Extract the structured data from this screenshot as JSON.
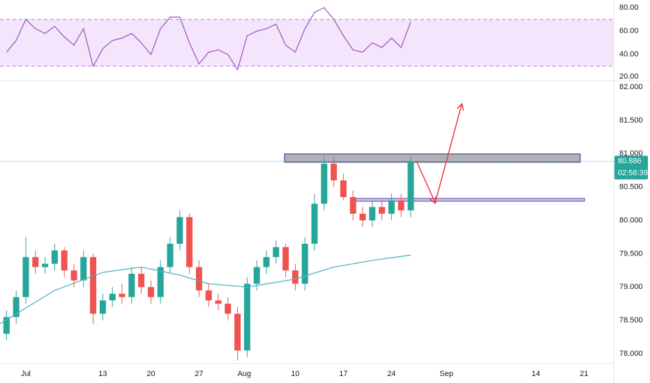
{
  "chart_data": [
    {
      "type": "line",
      "color": "#9c4fbd",
      "band": [
        30,
        70
      ],
      "band_color": "#f3e5fb",
      "x": [
        -2,
        -1,
        0,
        1,
        2,
        3,
        4,
        5,
        6,
        7,
        8,
        9,
        10,
        11,
        12,
        13,
        14,
        15,
        16,
        17,
        18,
        19,
        20,
        21,
        22,
        23,
        24,
        25,
        26,
        27,
        28,
        29,
        30,
        31,
        32,
        33,
        34,
        35,
        36,
        37,
        38,
        39,
        40
      ],
      "values": [
        42,
        52,
        70,
        62,
        58,
        64,
        55,
        48,
        62,
        30,
        45,
        52,
        54,
        58,
        50,
        40,
        62,
        72,
        72,
        50,
        32,
        42,
        44,
        40,
        27,
        56,
        60,
        62,
        66,
        48,
        42,
        62,
        76,
        80,
        70,
        56,
        44,
        42,
        50,
        46,
        54,
        46,
        68
      ],
      "xlim": [
        -2.68,
        61.09
      ],
      "ylim": [
        18.8,
        86.54
      ],
      "yticks": [
        {
          "value": 80,
          "label": "80.00"
        },
        {
          "value": 60,
          "label": "60.00"
        },
        {
          "value": 40,
          "label": "40.00"
        },
        {
          "value": 20,
          "label": "20.00"
        }
      ]
    },
    {
      "type": "candlestick",
      "up_color": "#26a69a",
      "down_color": "#ef5350",
      "x": [
        -2,
        -1,
        0,
        1,
        2,
        3,
        4,
        5,
        6,
        7,
        8,
        9,
        10,
        11,
        12,
        13,
        14,
        15,
        16,
        17,
        18,
        19,
        20,
        21,
        22,
        23,
        24,
        25,
        26,
        27,
        28,
        29,
        30,
        31,
        32,
        33,
        34,
        35,
        36,
        37,
        38,
        39,
        40
      ],
      "open": [
        78.3,
        78.55,
        78.85,
        79.45,
        79.3,
        79.35,
        79.55,
        79.25,
        79.1,
        79.45,
        78.6,
        78.8,
        78.9,
        78.85,
        79.2,
        79.0,
        78.85,
        79.3,
        79.65,
        80.05,
        79.3,
        78.95,
        78.8,
        78.75,
        78.6,
        78.05,
        79.05,
        79.3,
        79.45,
        79.6,
        79.25,
        79.05,
        79.65,
        80.25,
        80.85,
        80.6,
        80.35,
        80.1,
        80.0,
        80.2,
        80.1,
        80.3,
        80.15
      ],
      "high": [
        78.65,
        78.95,
        79.75,
        79.55,
        79.45,
        79.65,
        79.6,
        79.35,
        79.55,
        79.5,
        78.9,
        79.0,
        79.05,
        79.3,
        79.3,
        79.1,
        79.4,
        79.75,
        80.15,
        80.1,
        79.4,
        79.05,
        78.9,
        78.85,
        78.7,
        79.15,
        79.4,
        79.55,
        79.7,
        79.65,
        79.35,
        79.75,
        80.4,
        80.98,
        80.95,
        80.7,
        80.45,
        80.2,
        80.3,
        80.3,
        80.4,
        80.4,
        80.95
      ],
      "low": [
        78.2,
        78.45,
        78.75,
        79.2,
        79.2,
        79.25,
        79.15,
        79.0,
        79.0,
        78.45,
        78.5,
        78.7,
        78.75,
        78.75,
        78.9,
        78.75,
        78.75,
        79.2,
        79.55,
        79.2,
        78.85,
        78.7,
        78.65,
        78.5,
        77.9,
        77.95,
        78.95,
        79.2,
        79.35,
        79.15,
        78.95,
        78.95,
        79.55,
        80.15,
        80.5,
        80.3,
        80.0,
        79.9,
        79.9,
        80.0,
        80.0,
        80.05,
        80.05
      ],
      "close": [
        78.55,
        78.85,
        79.45,
        79.3,
        79.35,
        79.55,
        79.25,
        79.1,
        79.45,
        78.6,
        78.8,
        78.9,
        78.85,
        79.2,
        79.0,
        78.85,
        79.3,
        79.65,
        80.05,
        79.3,
        78.95,
        78.8,
        78.75,
        78.6,
        78.05,
        79.05,
        79.3,
        79.45,
        79.6,
        79.25,
        79.05,
        79.65,
        80.25,
        80.85,
        80.6,
        80.35,
        80.1,
        80.0,
        80.2,
        80.1,
        80.3,
        80.15,
        80.886
      ],
      "ma": {
        "color": "#4fb3bf",
        "x": [
          -2.68,
          3,
          8,
          12,
          16,
          19,
          23,
          28,
          32,
          36,
          40
        ],
        "values": [
          78.45,
          78.95,
          79.22,
          79.3,
          79.18,
          79.05,
          79.0,
          79.12,
          79.3,
          79.4,
          79.48
        ]
      },
      "last_price": 80.886,
      "last_price_color": "#26a69a",
      "countdown": "02:58:39",
      "xlim": [
        -2.68,
        61.09
      ],
      "ylim": [
        77.854,
        82.073
      ],
      "xticks": [
        {
          "value": 0,
          "label": "Jul"
        },
        {
          "value": 8,
          "label": "13"
        },
        {
          "value": 13,
          "label": "20"
        },
        {
          "value": 18,
          "label": "27"
        },
        {
          "value": 22.7,
          "label": "Aug"
        },
        {
          "value": 28,
          "label": "10"
        },
        {
          "value": 33,
          "label": "17"
        },
        {
          "value": 38,
          "label": "24"
        },
        {
          "value": 43.7,
          "label": "Sep"
        },
        {
          "value": 53,
          "label": "14"
        },
        {
          "value": 58,
          "label": "21"
        }
      ],
      "yticks": [
        {
          "value": 82,
          "label": "82.000"
        },
        {
          "value": 81.5,
          "label": "81.500"
        },
        {
          "value": 81,
          "label": "81.000"
        },
        {
          "value": 80.5,
          "label": "80.500"
        },
        {
          "value": 80,
          "label": "80.000"
        },
        {
          "value": 79.5,
          "label": "79.500"
        },
        {
          "value": 79,
          "label": "79.000"
        },
        {
          "value": 78.5,
          "label": "78.500"
        },
        {
          "value": 78,
          "label": "78.000"
        }
      ]
    }
  ]
}
